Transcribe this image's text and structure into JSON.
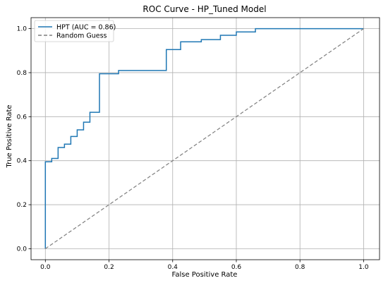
{
  "chart_data": {
    "type": "line",
    "title": "ROC Curve - HP_Tuned Model",
    "xlabel": "False Positive Rate",
    "ylabel": "True Positive Rate",
    "xlim": [
      -0.045,
      1.05
    ],
    "ylim": [
      -0.05,
      1.05
    ],
    "xticks": [
      0.0,
      0.2,
      0.4,
      0.6,
      0.8,
      1.0
    ],
    "yticks": [
      0.0,
      0.2,
      0.4,
      0.6,
      0.8,
      1.0
    ],
    "xtick_labels": [
      "0.0",
      "0.2",
      "0.4",
      "0.6",
      "0.8",
      "1.0"
    ],
    "ytick_labels": [
      "0.0",
      "0.2",
      "0.4",
      "0.6",
      "0.8",
      "1.0"
    ],
    "grid": true,
    "legend_position": "upper-left",
    "series": [
      {
        "name": "HPT (AUC = 0.86)",
        "color": "#1f77b4",
        "style": "solid",
        "x": [
          0.0,
          0.0,
          0.02,
          0.02,
          0.04,
          0.04,
          0.06,
          0.06,
          0.08,
          0.08,
          0.1,
          0.1,
          0.12,
          0.12,
          0.14,
          0.14,
          0.155,
          0.155,
          0.17,
          0.17,
          0.23,
          0.23,
          0.38,
          0.38,
          0.425,
          0.425,
          0.49,
          0.49,
          0.55,
          0.55,
          0.6,
          0.6,
          0.66,
          0.66,
          1.0
        ],
        "y": [
          0.0,
          0.395,
          0.395,
          0.41,
          0.41,
          0.46,
          0.46,
          0.475,
          0.475,
          0.51,
          0.51,
          0.54,
          0.54,
          0.575,
          0.575,
          0.62,
          0.62,
          0.62,
          0.62,
          0.795,
          0.795,
          0.81,
          0.81,
          0.905,
          0.905,
          0.94,
          0.94,
          0.95,
          0.95,
          0.97,
          0.97,
          0.985,
          0.985,
          1.0,
          1.0
        ]
      },
      {
        "name": "Random Guess",
        "color": "#7f7f7f",
        "style": "dashed",
        "x": [
          0.0,
          1.0
        ],
        "y": [
          0.0,
          1.0
        ]
      }
    ]
  }
}
